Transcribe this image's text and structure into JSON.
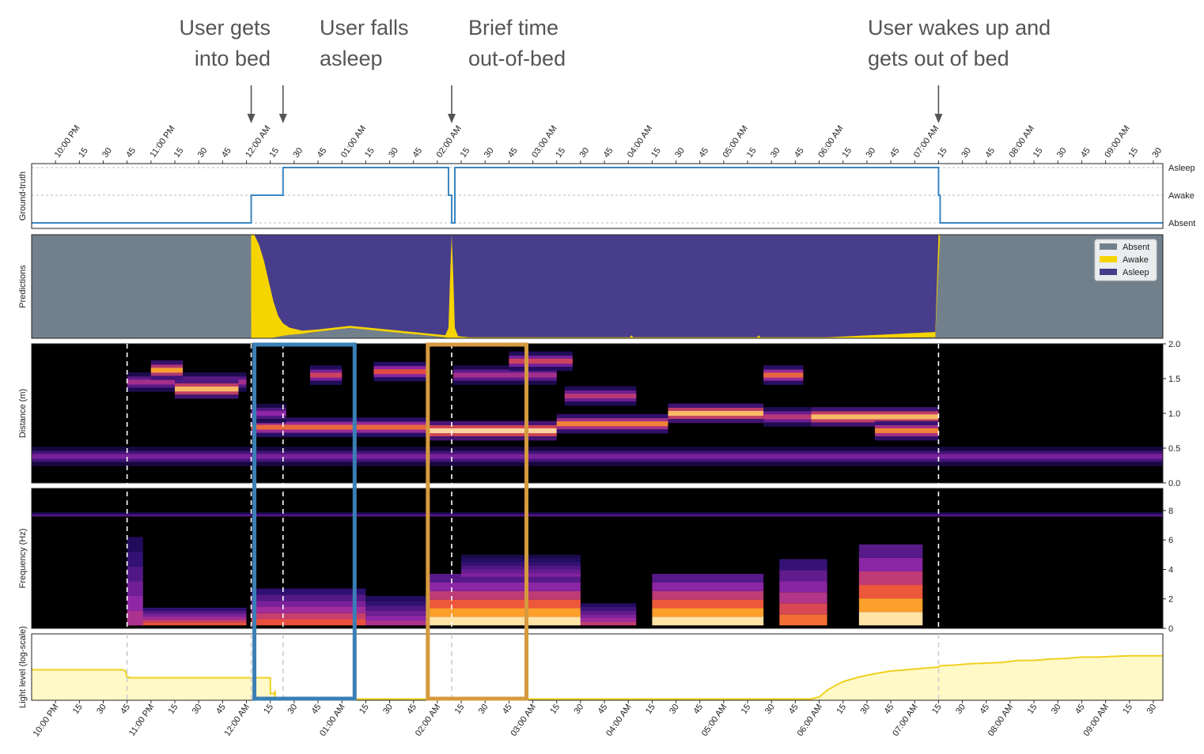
{
  "annotations": [
    {
      "line1": "User gets",
      "line2": "into bed",
      "time_min": 138
    },
    {
      "line1": "User falls",
      "line2": "asleep",
      "time_min": 158
    },
    {
      "line1": "Brief time",
      "line2": "out-of-bed",
      "time_min": 264
    },
    {
      "line1": "User wakes up and",
      "line2": "gets out of bed",
      "time_min": 570
    }
  ],
  "colors": {
    "annotation_text": "#555555",
    "arrow": "#555555",
    "ground_truth_line": "#3a85c0",
    "absent": "#72808c",
    "awake": "#f5d400",
    "asleep": "#483d8b",
    "spectrogram_bg": "#000000",
    "light_line": "#f0d020",
    "light_fill": "#fff9c8",
    "box_blue": "#3a7fb5",
    "box_orange": "#d69a3e",
    "event_line": "#dddddd"
  },
  "chart_data": {
    "type": "multi-panel time series",
    "x_axis": {
      "start": "9:45 PM",
      "end": "9:36 AM",
      "range_minutes": [
        0,
        711
      ],
      "tick_interval_minutes": 15,
      "tick_labels": [
        "10:00 PM",
        "15",
        "30",
        "45",
        "11:00 PM",
        "15",
        "30",
        "45",
        "12:00 AM",
        "15",
        "30",
        "45",
        "01:00 AM",
        "15",
        "30",
        "45",
        "02:00 AM",
        "15",
        "30",
        "45",
        "03:00 AM",
        "15",
        "30",
        "45",
        "04:00 AM",
        "15",
        "30",
        "45",
        "05:00 AM",
        "15",
        "30",
        "45",
        "06:00 AM",
        "15",
        "30",
        "45",
        "07:00 AM",
        "15",
        "30",
        "45",
        "08:00 AM",
        "15",
        "30",
        "45",
        "09:00 AM",
        "15",
        "30"
      ]
    },
    "event_times_min": [
      60,
      138,
      158,
      264,
      570
    ],
    "panels": [
      {
        "name": "ground_truth",
        "ylabel": "Ground-truth",
        "yticklabels": [
          "Asleep",
          "Awake",
          "Absent"
        ],
        "segments": [
          {
            "start": 0,
            "end": 138,
            "state": "Absent"
          },
          {
            "start": 138,
            "end": 158,
            "state": "Awake"
          },
          {
            "start": 158,
            "end": 262,
            "state": "Asleep"
          },
          {
            "start": 262,
            "end": 264,
            "state": "Awake"
          },
          {
            "start": 264,
            "end": 266,
            "state": "Absent"
          },
          {
            "start": 266,
            "end": 570,
            "state": "Asleep"
          },
          {
            "start": 570,
            "end": 571,
            "state": "Awake"
          },
          {
            "start": 571,
            "end": 711,
            "state": "Absent"
          }
        ]
      },
      {
        "name": "predictions",
        "ylabel": "Predictions",
        "legend": [
          "Absent",
          "Awake",
          "Asleep"
        ],
        "series": [
          {
            "name": "Absent",
            "x": [
              0,
              137.9,
              138,
              140,
              150,
              160,
              175,
              185,
              200,
              215,
              230,
              245,
              260,
              262,
              265,
              268,
              300,
              350,
              400,
              450,
              500,
              550,
              568,
              570,
              571,
              711
            ],
            "values": [
              1,
              1,
              0,
              0,
              0,
              0.03,
              0.05,
              0.08,
              0.1,
              0.08,
              0.06,
              0.03,
              0.01,
              0,
              0,
              0,
              0,
              0,
              0,
              0,
              0,
              0,
              0.01,
              0.7,
              1,
              1
            ]
          },
          {
            "name": "Awake",
            "x": [
              0,
              137.9,
              138,
              140,
              143,
              146,
              149,
              152,
              155,
              158,
              162,
              170,
              180,
              200,
              240,
              260,
              262,
              263,
              264,
              265,
              266,
              268,
              275,
              300,
              376,
              377,
              378,
              450,
              456,
              457,
              458,
              500,
              568,
              570,
              571,
              711
            ],
            "values": [
              0,
              0,
              1,
              1,
              0.9,
              0.75,
              0.55,
              0.35,
              0.2,
              0.12,
              0.07,
              0.03,
              0.02,
              0.02,
              0.02,
              0.02,
              0.1,
              0.6,
              1,
              0.6,
              0.1,
              0.02,
              0.01,
              0.01,
              0.01,
              0.03,
              0.01,
              0.01,
              0.01,
              0.03,
              0.01,
              0.01,
              0.05,
              0.3,
              0,
              0
            ]
          }
        ]
      },
      {
        "name": "distance",
        "ylabel": "Distance (m)",
        "yticklabels": [
          "2.0",
          "1.5",
          "1.0",
          "0.5",
          "0.0"
        ],
        "ylim": [
          0,
          2.0
        ],
        "colormap": "black-purple-orange-white",
        "bands": [
          {
            "start": 0,
            "end": 711,
            "dist": 0.38,
            "intensity": 0.45
          },
          {
            "start": 60,
            "end": 135,
            "dist": 1.45,
            "intensity": 0.55
          },
          {
            "start": 75,
            "end": 95,
            "dist": 1.62,
            "intensity": 0.85
          },
          {
            "start": 90,
            "end": 130,
            "dist": 1.35,
            "intensity": 0.9
          },
          {
            "start": 138,
            "end": 250,
            "dist": 0.8,
            "intensity": 0.75
          },
          {
            "start": 138,
            "end": 160,
            "dist": 1.0,
            "intensity": 0.5
          },
          {
            "start": 175,
            "end": 195,
            "dist": 1.55,
            "intensity": 0.65
          },
          {
            "start": 215,
            "end": 250,
            "dist": 1.6,
            "intensity": 0.7
          },
          {
            "start": 250,
            "end": 330,
            "dist": 0.75,
            "intensity": 0.95
          },
          {
            "start": 265,
            "end": 330,
            "dist": 1.55,
            "intensity": 0.55
          },
          {
            "start": 300,
            "end": 340,
            "dist": 1.75,
            "intensity": 0.65
          },
          {
            "start": 330,
            "end": 400,
            "dist": 0.85,
            "intensity": 0.8
          },
          {
            "start": 335,
            "end": 380,
            "dist": 1.25,
            "intensity": 0.6
          },
          {
            "start": 400,
            "end": 460,
            "dist": 1.0,
            "intensity": 0.9
          },
          {
            "start": 460,
            "end": 490,
            "dist": 0.95,
            "intensity": 0.6
          },
          {
            "start": 460,
            "end": 485,
            "dist": 1.55,
            "intensity": 0.75
          },
          {
            "start": 490,
            "end": 570,
            "dist": 0.95,
            "intensity": 0.9
          },
          {
            "start": 530,
            "end": 570,
            "dist": 0.75,
            "intensity": 0.8
          }
        ]
      },
      {
        "name": "frequency",
        "ylabel": "Frequency (Hz)",
        "yticklabels": [
          "8",
          "6",
          "4",
          "2",
          "0"
        ],
        "ylim": [
          0,
          9.5
        ],
        "bands": [
          {
            "start": 0,
            "end": 711,
            "freq": 7.6,
            "height": 0.3,
            "intensity": 0.4
          },
          {
            "start": 60,
            "end": 135,
            "freq": 0.2,
            "height": 1.2,
            "intensity": 0.7
          },
          {
            "start": 60,
            "end": 70,
            "freq": 0.2,
            "height": 6.0,
            "intensity": 0.55
          },
          {
            "start": 138,
            "end": 210,
            "freq": 0.2,
            "height": 2.5,
            "intensity": 0.7
          },
          {
            "start": 210,
            "end": 250,
            "freq": 0.2,
            "height": 2.0,
            "intensity": 0.55
          },
          {
            "start": 250,
            "end": 345,
            "freq": 0.2,
            "height": 3.5,
            "intensity": 0.95
          },
          {
            "start": 270,
            "end": 345,
            "freq": 3.5,
            "height": 1.5,
            "intensity": 0.45
          },
          {
            "start": 345,
            "end": 380,
            "freq": 0.2,
            "height": 1.5,
            "intensity": 0.6
          },
          {
            "start": 390,
            "end": 460,
            "freq": 0.2,
            "height": 3.5,
            "intensity": 0.95
          },
          {
            "start": 470,
            "end": 500,
            "freq": 0.2,
            "height": 4.5,
            "intensity": 0.75
          },
          {
            "start": 520,
            "end": 560,
            "freq": 0.2,
            "height": 5.5,
            "intensity": 0.95
          }
        ]
      },
      {
        "name": "light_level",
        "ylabel": "Light level (log-scale)",
        "ylim": [
          0,
          1
        ],
        "x": [
          0,
          57,
          59,
          60,
          61,
          61.1,
          150,
          150.1,
          152,
          153,
          153.1,
          160,
          490,
          495,
          500,
          505,
          510,
          520,
          530,
          540,
          550,
          560,
          570,
          571,
          580,
          590,
          600,
          610,
          620,
          630,
          640,
          650,
          660,
          670,
          680,
          690,
          700,
          711
        ],
        "values": [
          0.46,
          0.46,
          0.44,
          0.35,
          0.35,
          0.34,
          0.34,
          0.1,
          0.1,
          0.13,
          0.02,
          0.02,
          0.02,
          0.05,
          0.15,
          0.22,
          0.28,
          0.35,
          0.4,
          0.44,
          0.46,
          0.48,
          0.5,
          0.52,
          0.53,
          0.55,
          0.56,
          0.57,
          0.6,
          0.6,
          0.62,
          0.63,
          0.65,
          0.65,
          0.66,
          0.67,
          0.67,
          0.67
        ]
      }
    ],
    "highlight_boxes": [
      {
        "start": 140,
        "end": 203,
        "color": "box_blue"
      },
      {
        "start": 249,
        "end": 311,
        "color": "box_orange"
      }
    ]
  }
}
